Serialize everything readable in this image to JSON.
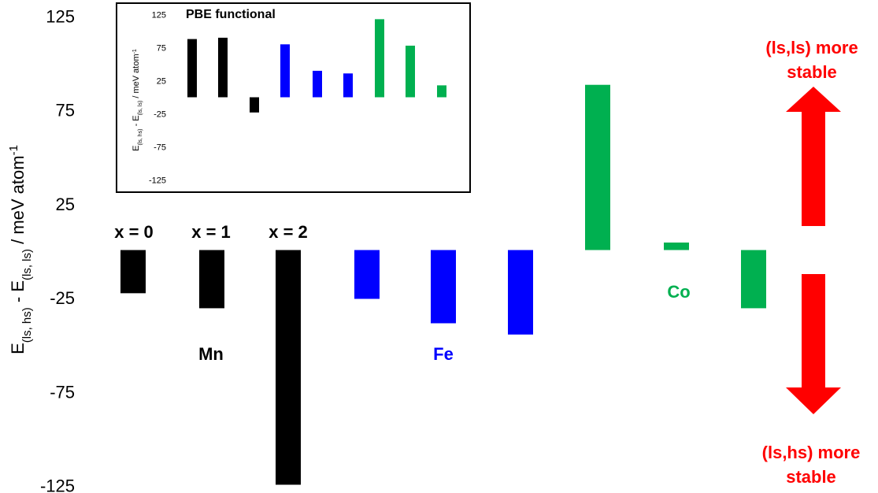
{
  "chart_data": [
    {
      "type": "bar",
      "ylabel_parts": [
        "E",
        "(ls, hs)",
        " - E",
        "(ls, ls)",
        " / meV atom",
        "-1"
      ],
      "yticks": [
        125,
        75,
        25,
        -25,
        -75,
        -125
      ],
      "ylim": [
        -125,
        125
      ],
      "grid": false,
      "categories": [
        "Mn x = 0",
        "Mn x = 1",
        "Mn x = 2",
        "Fe x = 0",
        "Fe x = 1",
        "Fe x = 2",
        "Co x = 0",
        "Co x = 1",
        "Co x = 2"
      ],
      "values": [
        -23,
        -31,
        -125,
        -26,
        -39,
        -45,
        88,
        4,
        -31
      ],
      "bar_colors": [
        "#000000",
        "#000000",
        "#000000",
        "#0000ff",
        "#0000ff",
        "#0000ff",
        "#00b050",
        "#00b050",
        "#00b050"
      ],
      "x_labels": [
        "x = 0",
        "x = 1",
        "x = 2"
      ],
      "groups": [
        {
          "name": "Mn",
          "color": "#000000"
        },
        {
          "name": "Fe",
          "color": "#0000ff"
        },
        {
          "name": "Co",
          "color": "#00b050"
        }
      ],
      "annotations": {
        "up_text": [
          "(ls,ls) more",
          "stable"
        ],
        "down_text": [
          "(ls,hs) more",
          "stable"
        ],
        "arrow_color": "#ff0000"
      }
    },
    {
      "type": "bar",
      "title": "PBE functional",
      "ylabel_parts": [
        "E",
        "(ls, hs)",
        " - E",
        "(ls, ls)",
        " / meV atom",
        "-1"
      ],
      "yticks": [
        125,
        75,
        25,
        -25,
        -75,
        -125
      ],
      "ylim": [
        -125,
        125
      ],
      "grid": false,
      "values": [
        88,
        90,
        -23,
        80,
        40,
        36,
        118,
        78,
        18
      ],
      "bar_colors": [
        "#000000",
        "#000000",
        "#000000",
        "#0000ff",
        "#0000ff",
        "#0000ff",
        "#00b050",
        "#00b050",
        "#00b050"
      ]
    }
  ]
}
